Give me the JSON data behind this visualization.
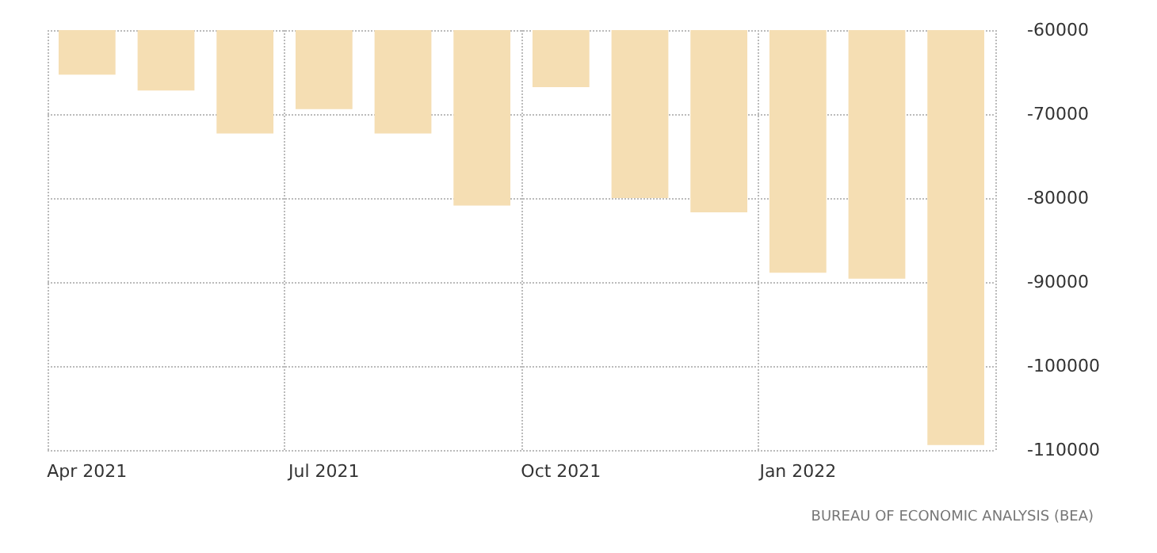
{
  "chart_data": {
    "type": "bar",
    "categories": [
      "Apr 2021",
      null,
      null,
      "Jul 2021",
      null,
      null,
      "Oct 2021",
      null,
      null,
      "Jan 2022",
      null,
      null
    ],
    "values": [
      -65300,
      -67200,
      -72300,
      -69400,
      -72300,
      -80900,
      -66800,
      -80000,
      -81700,
      -88900,
      -89600,
      -109400
    ],
    "color": "#f5deb3",
    "ylim": [
      -110000,
      -60000
    ],
    "yticks": [
      -110000,
      -100000,
      -90000,
      -80000,
      -70000,
      -60000
    ],
    "grid": true,
    "annotations": [
      "BUREAU OF ECONOMIC ANALYSIS (BEA)"
    ]
  }
}
